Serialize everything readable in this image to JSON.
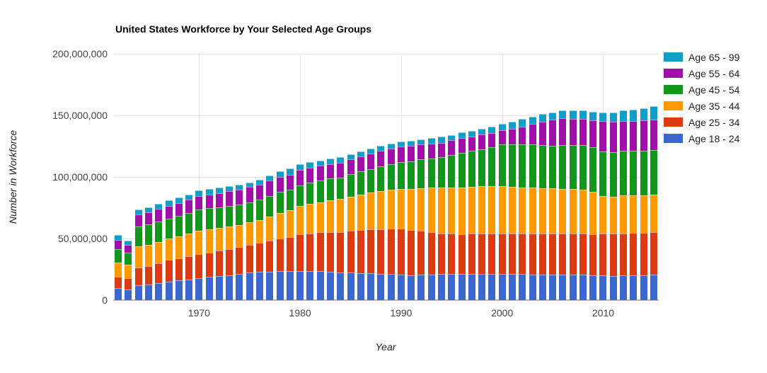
{
  "page": {
    "background": "#ffffff"
  },
  "chart_data": {
    "type": "bar",
    "stacked": true,
    "title": "United States Workforce by Your Selected Age Groups",
    "xlabel": "Year",
    "ylabel": "Number in Workforce",
    "values_unit": "millions",
    "ylim": [
      0,
      200000000
    ],
    "grid": true,
    "legend_position": "right",
    "years": {
      "start": 1962,
      "end": 2015
    },
    "x_ticks": [
      1970,
      1980,
      1990,
      2000,
      2010
    ],
    "y_ticks": [
      {
        "value_m": 0,
        "label": "0"
      },
      {
        "value_m": 50,
        "label": "50,000,000"
      },
      {
        "value_m": 100,
        "label": "100,000,000"
      },
      {
        "value_m": 150,
        "label": "150,000,000"
      },
      {
        "value_m": 200,
        "label": "200,000,000"
      }
    ],
    "series": [
      {
        "name": "Age 18 - 24",
        "color": "#3B67CE",
        "values": [
          9.6,
          8.4,
          11.9,
          12.6,
          14.0,
          15.0,
          15.9,
          16.9,
          18.0,
          18.8,
          19.6,
          20.4,
          21.3,
          22.4,
          22.8,
          23.2,
          23.5,
          23.4,
          23.7,
          23.7,
          23.4,
          23.0,
          22.4,
          22.4,
          22.0,
          21.7,
          21.4,
          21.0,
          20.5,
          20.2,
          20.5,
          20.9,
          21.4,
          21.2,
          21.0,
          21.2,
          21.3,
          21.3,
          21.4,
          21.2,
          21.0,
          20.8,
          20.6,
          20.5,
          20.6,
          20.5,
          20.5,
          20.3,
          19.9,
          19.8,
          19.9,
          20.0,
          20.2,
          20.5
        ]
      },
      {
        "name": "Age 25 - 34",
        "color": "#DC3B12",
        "values": [
          9.4,
          9.6,
          14.4,
          14.9,
          16.0,
          17.5,
          18.2,
          18.9,
          19.5,
          20.0,
          20.5,
          21.2,
          21.7,
          22.4,
          23.5,
          25.0,
          26.5,
          27.8,
          29.5,
          30.5,
          31.6,
          32.1,
          32.6,
          34.0,
          34.8,
          35.6,
          36.3,
          37.0,
          37.4,
          36.8,
          35.8,
          34.2,
          32.6,
          32.6,
          32.6,
          32.6,
          32.6,
          32.6,
          32.6,
          32.8,
          33.0,
          33.2,
          33.4,
          33.5,
          33.5,
          33.5,
          33.5,
          33.4,
          34.1,
          34.2,
          34.3,
          34.4,
          34.4,
          34.5
        ]
      },
      {
        "name": "Age 35 - 44",
        "color": "#FF9900",
        "values": [
          11.6,
          10.7,
          17.2,
          17.3,
          17.2,
          17.6,
          17.8,
          18.1,
          18.8,
          18.6,
          18.4,
          18.3,
          18.2,
          18.2,
          18.8,
          19.8,
          20.9,
          21.8,
          23.0,
          23.8,
          24.6,
          26.0,
          27.2,
          27.8,
          28.8,
          29.8,
          30.8,
          31.6,
          32.5,
          33.5,
          34.8,
          36.1,
          37.4,
          37.6,
          38.0,
          38.4,
          38.6,
          38.5,
          38.3,
          38.0,
          37.6,
          37.3,
          37.0,
          36.8,
          36.4,
          36.0,
          35.5,
          34.2,
          30.5,
          30.2,
          30.6,
          30.4,
          30.4,
          30.6
        ]
      },
      {
        "name": "Age 45 - 54",
        "color": "#12961E",
        "values": [
          11.0,
          10.0,
          16.3,
          16.5,
          16.7,
          16.3,
          16.5,
          16.8,
          17.3,
          17.2,
          17.0,
          16.8,
          16.5,
          16.3,
          16.3,
          16.5,
          16.8,
          16.5,
          17.2,
          17.4,
          17.6,
          17.5,
          17.3,
          18.2,
          18.8,
          19.5,
          20.2,
          20.8,
          21.5,
          22.3,
          23.2,
          24.0,
          24.9,
          26.4,
          28.0,
          29.0,
          30.0,
          31.5,
          33.9,
          34.7,
          35.0,
          35.3,
          34.9,
          34.5,
          35.5,
          36.0,
          36.4,
          36.5,
          36.4,
          36.2,
          36.3,
          36.3,
          36.3,
          36.4
        ]
      },
      {
        "name": "Age 55 - 64",
        "color": "#A010A8",
        "values": [
          7.3,
          6.1,
          9.9,
          10.0,
          10.1,
          10.2,
          10.4,
          10.7,
          11.1,
          11.3,
          11.5,
          11.8,
          12.1,
          12.5,
          12.5,
          12.5,
          12.5,
          12.5,
          12.2,
          12.1,
          11.9,
          12.0,
          12.1,
          12.1,
          12.2,
          12.4,
          12.6,
          12.8,
          13.0,
          12.6,
          12.2,
          11.8,
          11.5,
          11.9,
          12.2,
          11.5,
          11.9,
          11.5,
          11.5,
          12.5,
          14.5,
          16.5,
          19.0,
          21.1,
          21.5,
          21.3,
          21.0,
          21.5,
          24.3,
          24.3,
          24.4,
          24.4,
          24.5,
          24.4
        ]
      },
      {
        "name": "Age 65 - 99",
        "color": "#0E9EC6",
        "values": [
          3.8,
          3.5,
          3.9,
          3.8,
          4.2,
          4.4,
          4.5,
          4.4,
          4.2,
          4.2,
          4.2,
          4.2,
          4.0,
          3.8,
          4.0,
          4.2,
          4.5,
          4.8,
          4.6,
          4.5,
          4.4,
          4.5,
          4.6,
          4.2,
          4.2,
          4.1,
          4.0,
          3.9,
          3.8,
          4.0,
          4.2,
          4.5,
          4.8,
          4.4,
          4.4,
          4.8,
          4.9,
          5.4,
          5.7,
          5.7,
          5.8,
          6.0,
          6.0,
          6.1,
          6.4,
          6.8,
          7.0,
          7.2,
          7.3,
          7.8,
          8.5,
          9.2,
          10.0,
          11.1
        ]
      }
    ],
    "legend_order_top_to_bottom": [
      "Age 65 - 99",
      "Age 55 - 64",
      "Age 45 - 54",
      "Age 35 - 44",
      "Age 25 - 34",
      "Age 18 - 24"
    ]
  }
}
